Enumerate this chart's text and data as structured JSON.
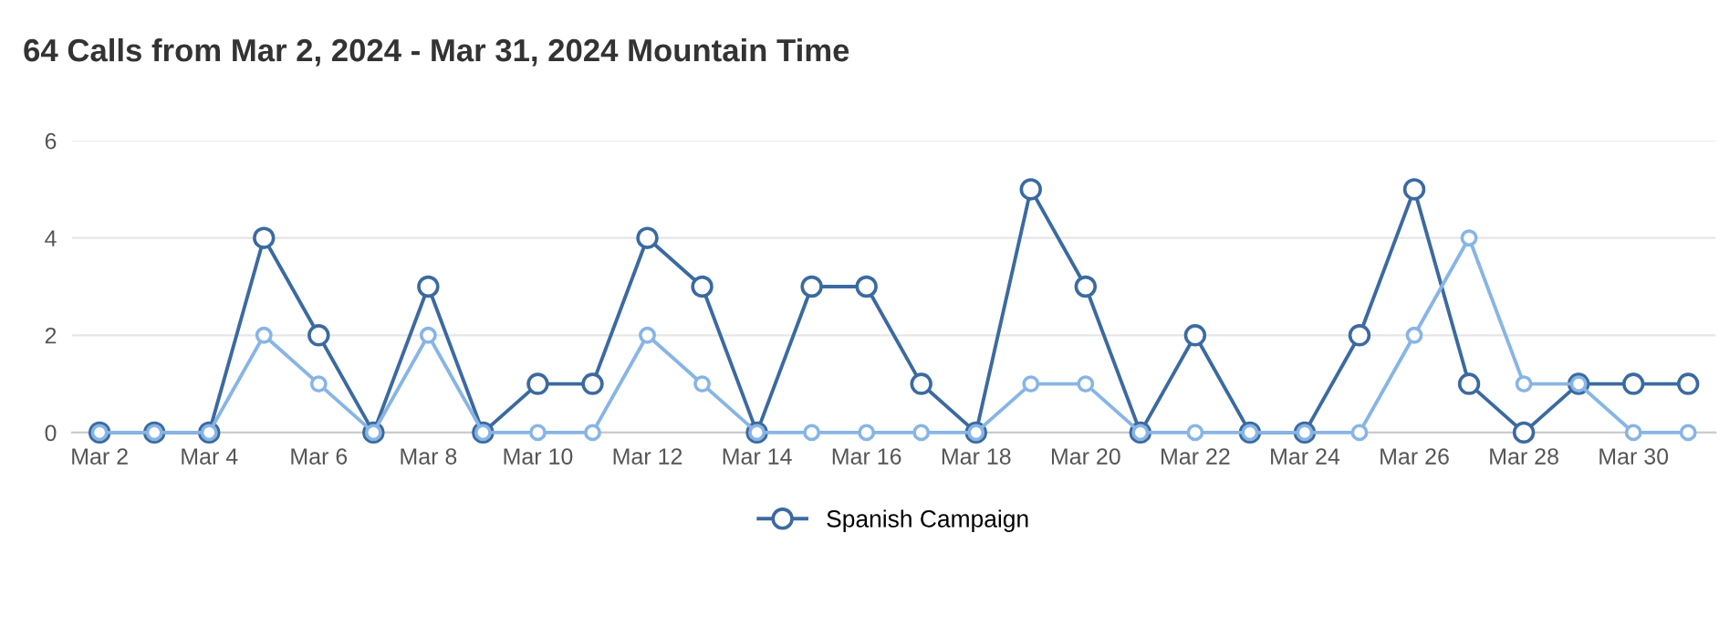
{
  "chart_data": {
    "type": "line",
    "title": "64 Calls from Mar 2, 2024 - Mar 31, 2024 Mountain Time",
    "categories": [
      "Mar 2",
      null,
      "Mar 4",
      null,
      "Mar 6",
      null,
      "Mar 8",
      null,
      "Mar 10",
      null,
      "Mar 12",
      null,
      "Mar 14",
      null,
      "Mar 16",
      null,
      "Mar 18",
      null,
      "Mar 20",
      null,
      "Mar 22",
      null,
      "Mar 24",
      null,
      "Mar 26",
      null,
      "Mar 28",
      null,
      "Mar 30",
      null
    ],
    "series": [
      {
        "name": "Spanish Campaign",
        "color": "#3b6aa0",
        "values": [
          0,
          0,
          0,
          4,
          2,
          0,
          3,
          0,
          1,
          1,
          4,
          3,
          0,
          3,
          3,
          1,
          0,
          5,
          3,
          0,
          2,
          0,
          0,
          2,
          5,
          1,
          0,
          1,
          1,
          1
        ]
      },
      {
        "color": "#87b5e5",
        "values": [
          0,
          0,
          0,
          2,
          1,
          0,
          2,
          0,
          0,
          0,
          2,
          1,
          0,
          0,
          0,
          0,
          0,
          1,
          1,
          0,
          0,
          0,
          0,
          0,
          2,
          4,
          1,
          1,
          0,
          0
        ]
      }
    ],
    "ylim": [
      0,
      6
    ],
    "yticks": [
      0,
      2,
      4,
      6
    ],
    "grid": "y",
    "legend": "bottom",
    "marker": "circle",
    "line_style": "solid"
  }
}
